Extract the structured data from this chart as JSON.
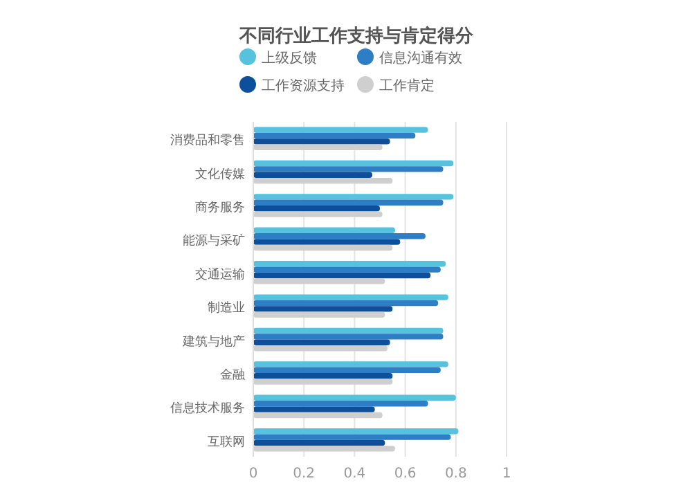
{
  "chart_data": {
    "type": "bar",
    "orientation": "horizontal",
    "title": "不同行业工作支持与肯定得分",
    "categories": [
      "消费品和零售",
      "文化传媒",
      "商务服务",
      "能源与采矿",
      "交通运输",
      "制造业",
      "建筑与地产",
      "金融",
      "信息技术服务",
      "互联网"
    ],
    "series": [
      {
        "name": "上级反馈",
        "color": "#56c2de",
        "values": [
          0.69,
          0.79,
          0.79,
          0.56,
          0.76,
          0.77,
          0.75,
          0.77,
          0.8,
          0.81
        ]
      },
      {
        "name": "信息沟通有效",
        "color": "#2e7ec6",
        "values": [
          0.64,
          0.75,
          0.75,
          0.68,
          0.74,
          0.73,
          0.75,
          0.74,
          0.69,
          0.78
        ]
      },
      {
        "name": "工作资源支持",
        "color": "#0e4f9b",
        "values": [
          0.54,
          0.47,
          0.5,
          0.58,
          0.7,
          0.55,
          0.54,
          0.55,
          0.48,
          0.52
        ]
      },
      {
        "name": "工作肯定",
        "color": "#cfcfcf",
        "values": [
          0.51,
          0.55,
          0.51,
          0.55,
          0.52,
          0.52,
          0.53,
          0.55,
          0.51,
          0.56
        ]
      }
    ],
    "xlim": [
      0,
      1
    ],
    "xticks": [
      0,
      0.2,
      0.4,
      0.6,
      0.8,
      1
    ],
    "grid": "x",
    "legend": "top"
  }
}
